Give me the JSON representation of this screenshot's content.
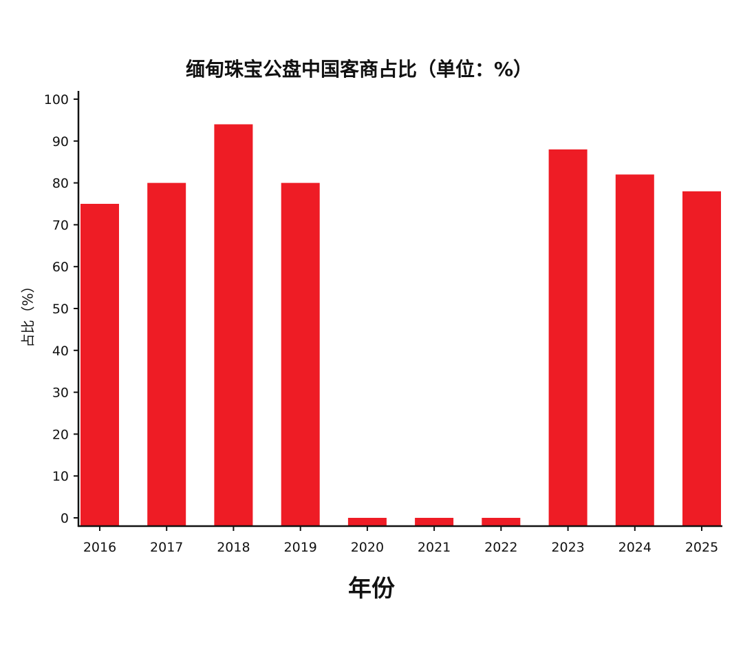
{
  "chart_data": {
    "type": "bar",
    "title": "缅甸珠宝公盘中国客商占比（单位：%）",
    "xlabel": "年份",
    "ylabel": "占比（%）",
    "categories": [
      "2016",
      "2017",
      "2018",
      "2019",
      "2020",
      "2021",
      "2022",
      "2023",
      "2024",
      "2025"
    ],
    "values": [
      75,
      80,
      94,
      80,
      0,
      0,
      0,
      88,
      82,
      78
    ],
    "ylim": [
      0,
      100
    ],
    "yticks": [
      0,
      10,
      20,
      30,
      40,
      50,
      60,
      70,
      80,
      90,
      100
    ],
    "bar_color": "#ee1c25",
    "grid": false,
    "legend": "none"
  }
}
